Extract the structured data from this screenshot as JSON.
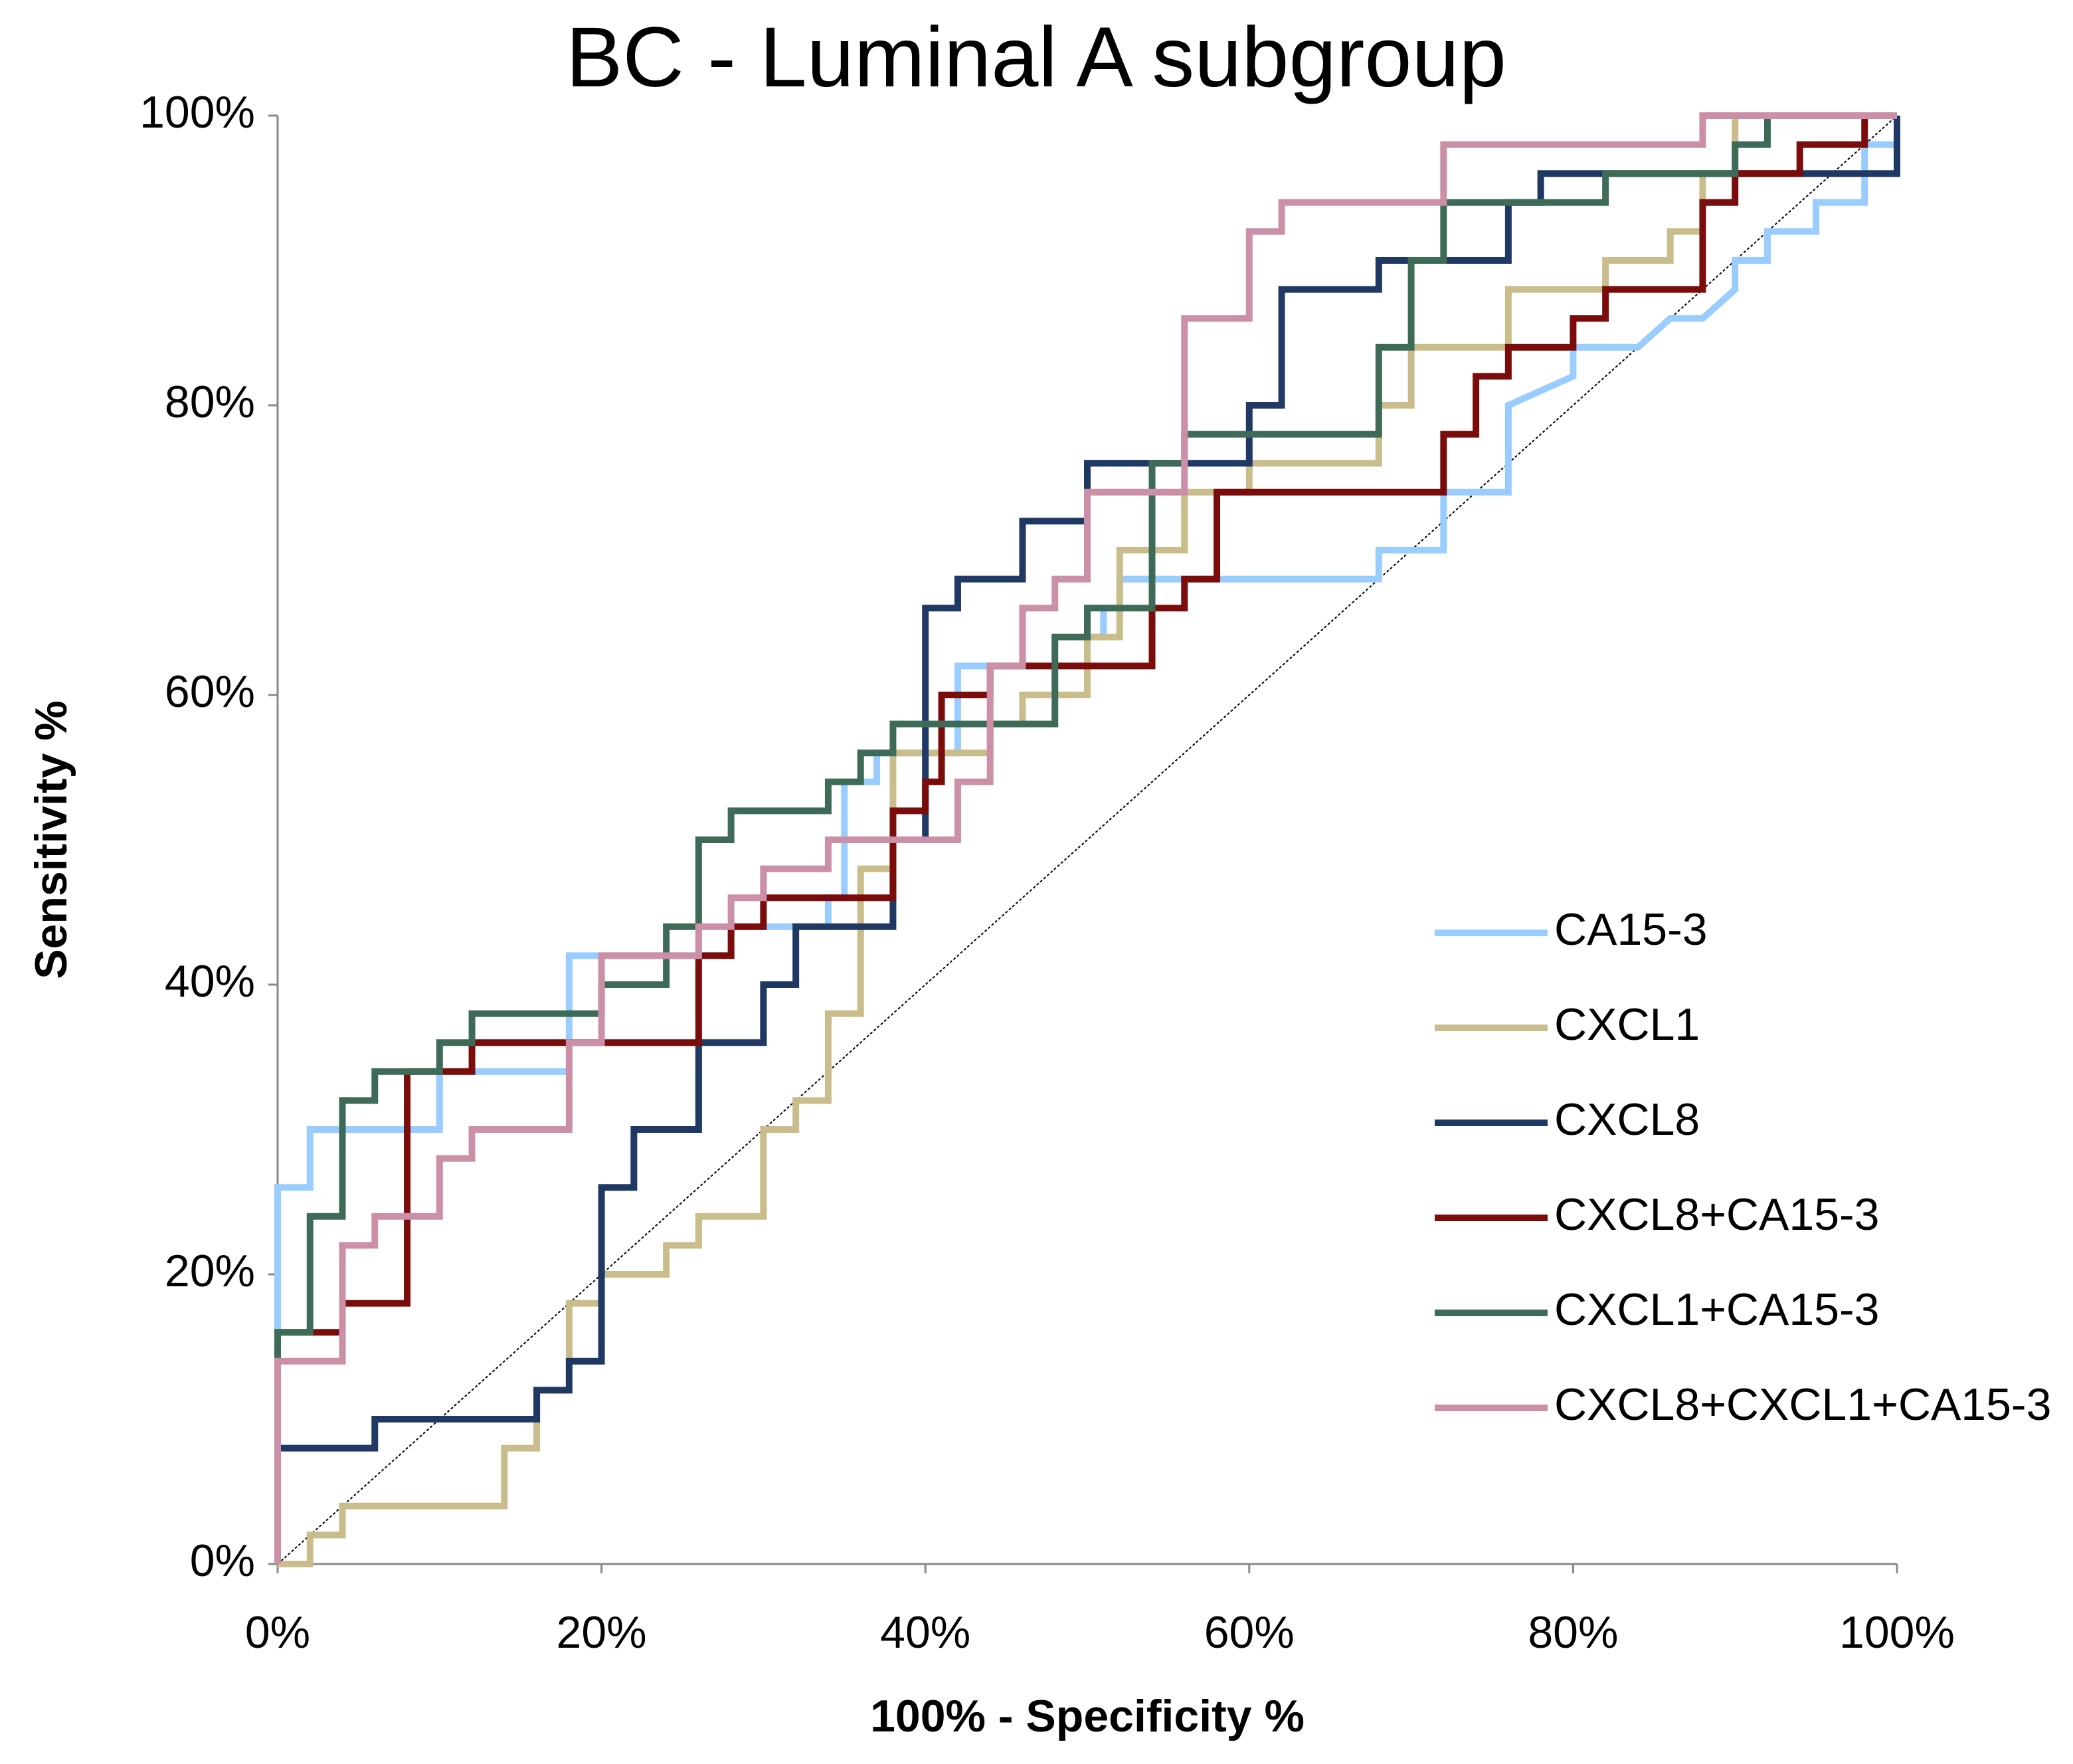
{
  "chart_data": {
    "type": "line",
    "title": "BC - Luminal A subgroup",
    "x_label": "100% - Specificity %",
    "y_label": "Sensitivity %",
    "xlim": [
      0,
      100
    ],
    "ylim": [
      0,
      100
    ],
    "xticks": [
      {
        "value": 0,
        "label": "0%"
      },
      {
        "value": 20,
        "label": "20%"
      },
      {
        "value": 40,
        "label": "40%"
      },
      {
        "value": 60,
        "label": "60%"
      },
      {
        "value": 80,
        "label": "80%"
      },
      {
        "value": 100,
        "label": "100%"
      }
    ],
    "yticks": [
      {
        "value": 0,
        "label": "0%"
      },
      {
        "value": 20,
        "label": "20%"
      },
      {
        "value": 40,
        "label": "40%"
      },
      {
        "value": 60,
        "label": "60%"
      },
      {
        "value": 80,
        "label": "80%"
      },
      {
        "value": 100,
        "label": "100%"
      }
    ],
    "grid": false,
    "diagonal": true,
    "legend": "lower right",
    "series": [
      {
        "name": "CA15-3",
        "color": "#99ccff",
        "x": [
          0,
          0,
          2,
          2,
          10,
          10,
          18,
          18,
          28,
          28,
          34,
          34,
          35,
          35,
          37,
          37,
          42,
          42,
          50,
          50,
          51,
          51,
          52,
          52,
          68,
          68,
          72,
          72,
          76,
          76,
          78,
          80,
          80,
          84,
          86,
          88,
          90,
          90,
          92,
          92,
          95,
          95,
          98,
          98,
          100,
          100
        ],
        "values": [
          0,
          26,
          26,
          30,
          30,
          34,
          34,
          42,
          42,
          44,
          44,
          46,
          46,
          54,
          54,
          56,
          56,
          62,
          62,
          64,
          64,
          66,
          66,
          68,
          68,
          70,
          70,
          74,
          74,
          80,
          81,
          82,
          84,
          84,
          86,
          86,
          88,
          90,
          90,
          92,
          92,
          94,
          94,
          98,
          98,
          100
        ]
      },
      {
        "name": "CXCL1",
        "color": "#c9bd8b",
        "x": [
          0,
          2,
          2,
          4,
          4,
          14,
          14,
          16,
          16,
          18,
          18,
          20,
          20,
          24,
          24,
          26,
          26,
          30,
          30,
          32,
          32,
          34,
          34,
          36,
          36,
          38,
          38,
          44,
          44,
          46,
          46,
          50,
          50,
          52,
          52,
          56,
          56,
          60,
          60,
          68,
          68,
          70,
          70,
          76,
          76,
          82,
          82,
          86,
          86,
          88,
          88,
          90,
          90,
          100
        ],
        "values": [
          0,
          0,
          2,
          2,
          4,
          4,
          8,
          8,
          12,
          12,
          18,
          18,
          20,
          20,
          22,
          22,
          24,
          24,
          30,
          30,
          32,
          32,
          38,
          38,
          48,
          48,
          56,
          56,
          58,
          58,
          60,
          60,
          64,
          64,
          70,
          70,
          74,
          74,
          76,
          76,
          80,
          80,
          84,
          84,
          88,
          88,
          90,
          90,
          92,
          92,
          96,
          96,
          100,
          100
        ]
      },
      {
        "name": "CXCL8",
        "color": "#1f3864",
        "x": [
          0,
          0,
          6,
          6,
          16,
          16,
          18,
          18,
          20,
          20,
          22,
          22,
          26,
          26,
          30,
          30,
          32,
          32,
          38,
          38,
          40,
          40,
          42,
          42,
          46,
          46,
          50,
          50,
          60,
          60,
          62,
          62,
          68,
          68,
          76,
          76,
          78,
          78,
          100,
          100
        ],
        "values": [
          0,
          8,
          8,
          10,
          10,
          12,
          12,
          14,
          14,
          26,
          26,
          30,
          30,
          36,
          36,
          40,
          40,
          44,
          44,
          50,
          50,
          66,
          66,
          68,
          68,
          72,
          72,
          76,
          76,
          80,
          80,
          88,
          88,
          90,
          90,
          94,
          94,
          96,
          96,
          100
        ]
      },
      {
        "name": "CXCL8+CA15-3",
        "color": "#7b0c0c",
        "x": [
          0,
          0,
          4,
          4,
          8,
          8,
          12,
          12,
          26,
          26,
          28,
          28,
          30,
          30,
          38,
          38,
          40,
          40,
          41,
          41,
          44,
          44,
          54,
          54,
          56,
          56,
          58,
          58,
          72,
          72,
          74,
          74,
          76,
          76,
          80,
          80,
          82,
          82,
          88,
          88,
          90,
          90,
          94,
          94,
          98,
          98,
          100
        ],
        "values": [
          0,
          16,
          16,
          18,
          18,
          34,
          34,
          36,
          36,
          42,
          42,
          44,
          44,
          46,
          46,
          52,
          52,
          54,
          54,
          60,
          60,
          62,
          62,
          66,
          66,
          68,
          68,
          74,
          74,
          78,
          78,
          82,
          82,
          84,
          84,
          86,
          86,
          88,
          88,
          94,
          94,
          96,
          96,
          98,
          98,
          100,
          100
        ]
      },
      {
        "name": "CXCL1+CA15-3",
        "color": "#3e6b57",
        "x": [
          0,
          0,
          2,
          2,
          4,
          4,
          6,
          6,
          10,
          10,
          12,
          12,
          20,
          20,
          24,
          24,
          26,
          26,
          28,
          28,
          34,
          34,
          36,
          36,
          38,
          38,
          48,
          48,
          50,
          50,
          54,
          54,
          56,
          56,
          68,
          68,
          70,
          70,
          72,
          72,
          82,
          82,
          90,
          90,
          92,
          92,
          100
        ],
        "values": [
          0,
          16,
          16,
          24,
          24,
          32,
          32,
          34,
          34,
          36,
          36,
          38,
          38,
          40,
          40,
          44,
          44,
          50,
          50,
          52,
          52,
          54,
          54,
          56,
          56,
          58,
          58,
          64,
          64,
          66,
          66,
          76,
          76,
          78,
          78,
          84,
          84,
          90,
          90,
          94,
          94,
          96,
          96,
          98,
          98,
          100,
          100
        ]
      },
      {
        "name": "CXCL8+CXCL1+CA15-3",
        "color": "#cc8fa8",
        "x": [
          0,
          0,
          4,
          4,
          6,
          6,
          10,
          10,
          12,
          12,
          18,
          18,
          20,
          20,
          26,
          26,
          28,
          28,
          30,
          30,
          34,
          34,
          42,
          42,
          44,
          44,
          46,
          46,
          48,
          48,
          50,
          50,
          56,
          56,
          60,
          60,
          62,
          62,
          72,
          72,
          88,
          88,
          100
        ],
        "values": [
          0,
          14,
          14,
          22,
          22,
          24,
          24,
          28,
          28,
          30,
          30,
          36,
          36,
          42,
          42,
          44,
          44,
          46,
          46,
          48,
          48,
          50,
          50,
          54,
          54,
          62,
          62,
          66,
          66,
          68,
          68,
          74,
          74,
          86,
          86,
          92,
          92,
          94,
          94,
          98,
          98,
          100,
          100
        ]
      }
    ]
  }
}
